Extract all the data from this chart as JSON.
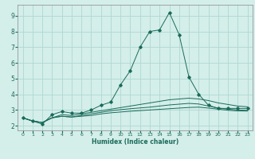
{
  "xlabel": "Humidex (Indice chaleur)",
  "bg_color": "#d4eeea",
  "grid_color": "#aed8d2",
  "line_color": "#1a6b5a",
  "xlim": [
    -0.5,
    23.5
  ],
  "ylim": [
    1.7,
    9.7
  ],
  "xticks": [
    0,
    1,
    2,
    3,
    4,
    5,
    6,
    7,
    8,
    9,
    10,
    11,
    12,
    13,
    14,
    15,
    16,
    17,
    18,
    19,
    20,
    21,
    22,
    23
  ],
  "yticks": [
    2,
    3,
    4,
    5,
    6,
    7,
    8,
    9
  ],
  "series_main": [
    2.5,
    2.3,
    2.1,
    2.7,
    2.9,
    2.8,
    2.8,
    3.0,
    3.3,
    3.5,
    4.6,
    5.5,
    7.0,
    8.0,
    8.1,
    9.2,
    7.8,
    5.1,
    4.0,
    3.3,
    3.1,
    3.1,
    3.1,
    3.1
  ],
  "series_l1": [
    2.5,
    2.3,
    2.2,
    2.5,
    2.7,
    2.65,
    2.75,
    2.85,
    2.95,
    3.05,
    3.15,
    3.25,
    3.35,
    3.45,
    3.55,
    3.65,
    3.7,
    3.75,
    3.7,
    3.6,
    3.45,
    3.35,
    3.25,
    3.2
  ],
  "series_l2": [
    2.5,
    2.3,
    2.2,
    2.5,
    2.6,
    2.55,
    2.65,
    2.75,
    2.85,
    2.95,
    3.02,
    3.08,
    3.13,
    3.18,
    3.25,
    3.32,
    3.37,
    3.42,
    3.38,
    3.25,
    3.12,
    3.05,
    3.0,
    2.98
  ],
  "series_l3": [
    2.5,
    2.3,
    2.2,
    2.5,
    2.6,
    2.55,
    2.6,
    2.65,
    2.75,
    2.82,
    2.87,
    2.92,
    2.96,
    3.0,
    3.04,
    3.08,
    3.12,
    3.16,
    3.18,
    3.12,
    3.05,
    2.98,
    2.94,
    2.93
  ]
}
